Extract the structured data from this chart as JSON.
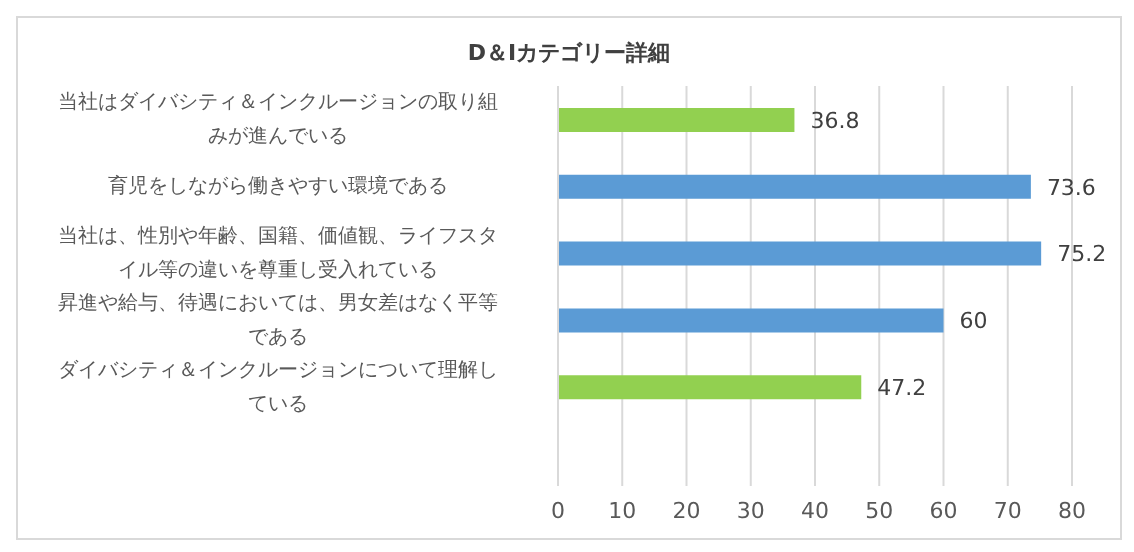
{
  "chart_data": {
    "type": "bar",
    "orientation": "horizontal",
    "title": "D＆Iカテゴリー詳細",
    "categories": [
      "当社はダイバシティ＆インクルージョンの取り組みが進んでいる",
      "育児をしながら働きやすい環境である",
      "当社は、性別や年齢、国籍、価値観、ライフスタイル等の違いを尊重し受入れている",
      "昇進や給与、待遇においては、男女差はなく平等である",
      "ダイバシティ＆インクルージョンについて理解している"
    ],
    "values": [
      36.8,
      73.6,
      75.2,
      60,
      47.2
    ],
    "colors": [
      "#92d050",
      "#5b9bd5",
      "#5b9bd5",
      "#5b9bd5",
      "#92d050"
    ],
    "xlim": [
      0,
      80
    ],
    "xticks": [
      0,
      10,
      20,
      30,
      40,
      50,
      60,
      70,
      80
    ],
    "grid": "x",
    "data_labels": true,
    "legend": false
  }
}
